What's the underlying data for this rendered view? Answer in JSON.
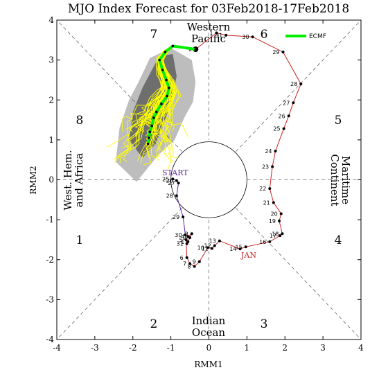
{
  "chart_data": {
    "type": "scatter",
    "title": "MJO Index Forecast for 03Feb2018-17Feb2018",
    "xlabel": "RMM1",
    "ylabel": "RMM2",
    "xlim": [
      -4,
      4
    ],
    "ylim": [
      -4,
      4
    ],
    "xticks": [
      "-4",
      "-3",
      "-2",
      "-1",
      "0",
      "1",
      "2",
      "3",
      "4"
    ],
    "yticks": [
      "-4",
      "-3",
      "-2",
      "-1",
      "0",
      "1",
      "2",
      "3",
      "4"
    ],
    "phases": [
      {
        "label": "1",
        "x": -3.4,
        "y": -1.5
      },
      {
        "label": "2",
        "x": -1.45,
        "y": -3.6
      },
      {
        "label": "3",
        "x": 1.45,
        "y": -3.6
      },
      {
        "label": "4",
        "x": 3.4,
        "y": -1.5
      },
      {
        "label": "5",
        "x": 3.4,
        "y": 1.5
      },
      {
        "label": "6",
        "x": 1.45,
        "y": 3.65
      },
      {
        "label": "7",
        "x": -1.45,
        "y": 3.65
      },
      {
        "label": "8",
        "x": -3.4,
        "y": 1.5
      }
    ],
    "regions": {
      "top": [
        "Western",
        "Pacific"
      ],
      "bottom": [
        "Indian",
        "Ocean"
      ],
      "left": [
        "West. Hem.",
        "and Africa"
      ],
      "right": [
        "Maritime",
        "Continent"
      ]
    },
    "legend": {
      "label": "ECMF",
      "color": "#00ee00",
      "position": "top-right"
    },
    "annotations": {
      "start": "START",
      "month": "JAN"
    },
    "colors": {
      "dec": "#5a2aa0",
      "jan": "#cc2020",
      "ensemble": "#ffff00",
      "mean": "#00ee00",
      "spread_light": "#bdbdbd",
      "spread_dark": "#6e6e6e"
    },
    "observed_dec": [
      {
        "day": "25",
        "x": -0.95,
        "y": 0.02
      },
      {
        "day": "26",
        "x": -0.85,
        "y": -0.02
      },
      {
        "day": "27",
        "x": -0.8,
        "y": -0.08
      },
      {
        "day": "28",
        "x": -0.85,
        "y": -0.4
      },
      {
        "day": "29",
        "x": -0.68,
        "y": -0.93
      },
      {
        "day": "30",
        "x": -0.62,
        "y": -1.38
      },
      {
        "day": "31",
        "x": -0.58,
        "y": -1.6
      }
    ],
    "observed_jan": [
      {
        "day": "1",
        "x": -0.55,
        "y": -1.55
      },
      {
        "day": "2",
        "x": -0.5,
        "y": -1.45
      },
      {
        "day": "3",
        "x": -0.45,
        "y": -1.35
      },
      {
        "day": "4",
        "x": -0.55,
        "y": -1.42
      },
      {
        "day": "5",
        "x": -0.6,
        "y": -1.5
      },
      {
        "day": "6",
        "x": -0.58,
        "y": -1.95
      },
      {
        "day": "7",
        "x": -0.5,
        "y": -2.1
      },
      {
        "day": "8",
        "x": -0.38,
        "y": -2.17
      },
      {
        "day": "9",
        "x": -0.25,
        "y": -2.05
      },
      {
        "day": "10",
        "x": -0.03,
        "y": -1.7
      },
      {
        "day": "11",
        "x": 0.08,
        "y": -1.72
      },
      {
        "day": "12",
        "x": 0.15,
        "y": -1.65
      },
      {
        "day": "13",
        "x": 0.28,
        "y": -1.53
      },
      {
        "day": "14",
        "x": 0.82,
        "y": -1.73
      },
      {
        "day": "15",
        "x": 0.97,
        "y": -1.68
      },
      {
        "day": "16",
        "x": 1.6,
        "y": -1.55
      },
      {
        "day": "17",
        "x": 1.87,
        "y": -1.4
      },
      {
        "day": "18",
        "x": 1.93,
        "y": -1.35
      },
      {
        "day": "19",
        "x": 1.85,
        "y": -1.03
      },
      {
        "day": "20",
        "x": 1.9,
        "y": -0.85
      },
      {
        "day": "21",
        "x": 1.7,
        "y": -0.57
      },
      {
        "day": "22",
        "x": 1.6,
        "y": -0.22
      },
      {
        "day": "23",
        "x": 1.67,
        "y": 0.33
      },
      {
        "day": "24",
        "x": 1.75,
        "y": 0.72
      },
      {
        "day": "25",
        "x": 1.97,
        "y": 1.28
      },
      {
        "day": "26",
        "x": 2.1,
        "y": 1.6
      },
      {
        "day": "27",
        "x": 2.22,
        "y": 1.93
      },
      {
        "day": "28",
        "x": 2.42,
        "y": 2.4
      },
      {
        "day": "29",
        "x": 1.95,
        "y": 3.2
      },
      {
        "day": "30",
        "x": 1.15,
        "y": 3.58
      },
      {
        "day": "31",
        "x": 0.45,
        "y": 3.62
      },
      {
        "day": "1",
        "x": 0.2,
        "y": 3.68
      },
      {
        "day": "2",
        "x": -0.35,
        "y": 3.27
      }
    ],
    "mean_forecast": [
      {
        "x": -0.35,
        "y": 3.27
      },
      {
        "x": -0.95,
        "y": 3.35
      },
      {
        "x": -1.15,
        "y": 3.2
      },
      {
        "x": -1.3,
        "y": 3.0
      },
      {
        "x": -1.22,
        "y": 2.75
      },
      {
        "x": -1.12,
        "y": 2.5
      },
      {
        "x": -1.05,
        "y": 2.3
      },
      {
        "x": -1.1,
        "y": 2.1
      },
      {
        "x": -1.25,
        "y": 1.9
      },
      {
        "x": -1.38,
        "y": 1.7
      },
      {
        "x": -1.45,
        "y": 1.55
      },
      {
        "x": -1.5,
        "y": 1.35
      },
      {
        "x": -1.55,
        "y": 1.2
      },
      {
        "x": -1.58,
        "y": 1.05
      },
      {
        "x": -1.6,
        "y": 0.9
      }
    ]
  }
}
